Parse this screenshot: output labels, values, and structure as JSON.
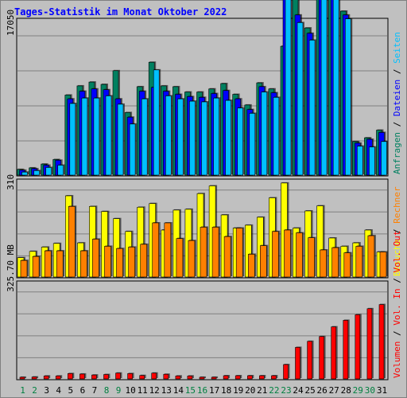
{
  "chart_data": {
    "type": "bar",
    "title": "Tages-Statistik im Monat Oktober 2022",
    "days": [
      "1",
      "2",
      "3",
      "4",
      "5",
      "6",
      "7",
      "8",
      "9",
      "10",
      "11",
      "12",
      "13",
      "14",
      "15",
      "16",
      "17",
      "18",
      "19",
      "20",
      "21",
      "22",
      "23",
      "24",
      "25",
      "26",
      "27",
      "28",
      "29",
      "30",
      "31"
    ],
    "weekend_days": [
      "1",
      "2",
      "8",
      "9",
      "15",
      "16",
      "22",
      "23",
      "29",
      "30"
    ],
    "colors": {
      "title": "#0000ff",
      "weekend_label": "#008040",
      "weekday_label": "#000000",
      "anfragen": "#008060",
      "dateien": "#0000ff",
      "seiten": "#00c0ff",
      "besuche": "#ffff00",
      "rechner": "#ff8000",
      "volumen": "#ff0000",
      "vol_in": "#ff0000",
      "vol_out": "#ff0000"
    },
    "panels": [
      {
        "name": "requests",
        "scale_label": "17050",
        "ymax": 20460,
        "legend": [
          "Anfragen",
          "Dateien",
          "Seiten"
        ],
        "series": [
          {
            "name": "Anfragen",
            "values": [
              750,
              950,
              1450,
              2050,
              10500,
              11700,
              12200,
              11900,
              13700,
              8200,
              11600,
              14800,
              11700,
              11600,
              10900,
              10900,
              11300,
              12000,
              10600,
              9200,
              12100,
              11300,
              16900,
              23000,
              19300,
              30000,
              27500,
              21500,
              4400,
              4900,
              5900
            ]
          },
          {
            "name": "Dateien",
            "values": [
              650,
              850,
              1300,
              1950,
              10000,
              11000,
              11300,
              11200,
              10000,
              7600,
              11000,
              11500,
              11000,
              10600,
              10300,
              10200,
              10700,
              11100,
              10000,
              8600,
              11600,
              10800,
              24700,
              21000,
              18600,
              29500,
              27000,
              21000,
              4200,
              4700,
              5600
            ]
          },
          {
            "name": "Seiten",
            "values": [
              400,
              600,
              1000,
              1300,
              9400,
              10100,
              10100,
              10400,
              9300,
              6700,
              10000,
              13800,
              10400,
              10000,
              9700,
              9600,
              10100,
              9800,
              8800,
              8100,
              10900,
              10200,
              24200,
              20000,
              17700,
              28800,
              26500,
              20500,
              3800,
              3700,
              4400
            ]
          }
        ]
      },
      {
        "name": "visits",
        "scale_label": "310",
        "ymax": 341,
        "legend": [
          "Besuche",
          "Rechner"
        ],
        "series": [
          {
            "name": "Besuche",
            "values": [
              68,
              90,
              105,
              118,
              285,
              120,
              248,
              230,
              205,
              160,
              245,
              258,
              165,
              235,
              238,
              293,
              320,
              218,
              172,
              182,
              210,
              278,
              330,
              172,
              232,
              250,
              137,
              108,
              120,
              165,
              88
            ]
          },
          {
            "name": "Rechner",
            "values": [
              58,
              72,
              92,
              92,
              248,
              92,
              133,
              108,
              100,
              105,
              115,
              190,
              190,
              135,
              128,
              175,
              175,
              142,
              172,
              80,
              110,
              160,
              165,
              155,
              138,
              95,
              103,
              85,
              108,
              145,
              88
            ]
          }
        ]
      },
      {
        "name": "volume",
        "scale_label": "325.70 MB",
        "ymax": 401.0,
        "legend": [
          "Volumen",
          "Vol. In",
          "Vol. Out"
        ],
        "series": [
          {
            "name": "Volumen",
            "values": [
              7,
              8,
              12,
              12,
              22,
              20,
              16,
              18,
              24,
              22,
              14,
              24,
              19,
              12,
              12,
              7,
              7,
              13,
              13,
              13,
              13,
              13,
              59,
              130,
              155,
              175,
              215,
              242,
              265,
              290,
              307
            ]
          }
        ]
      }
    ]
  }
}
